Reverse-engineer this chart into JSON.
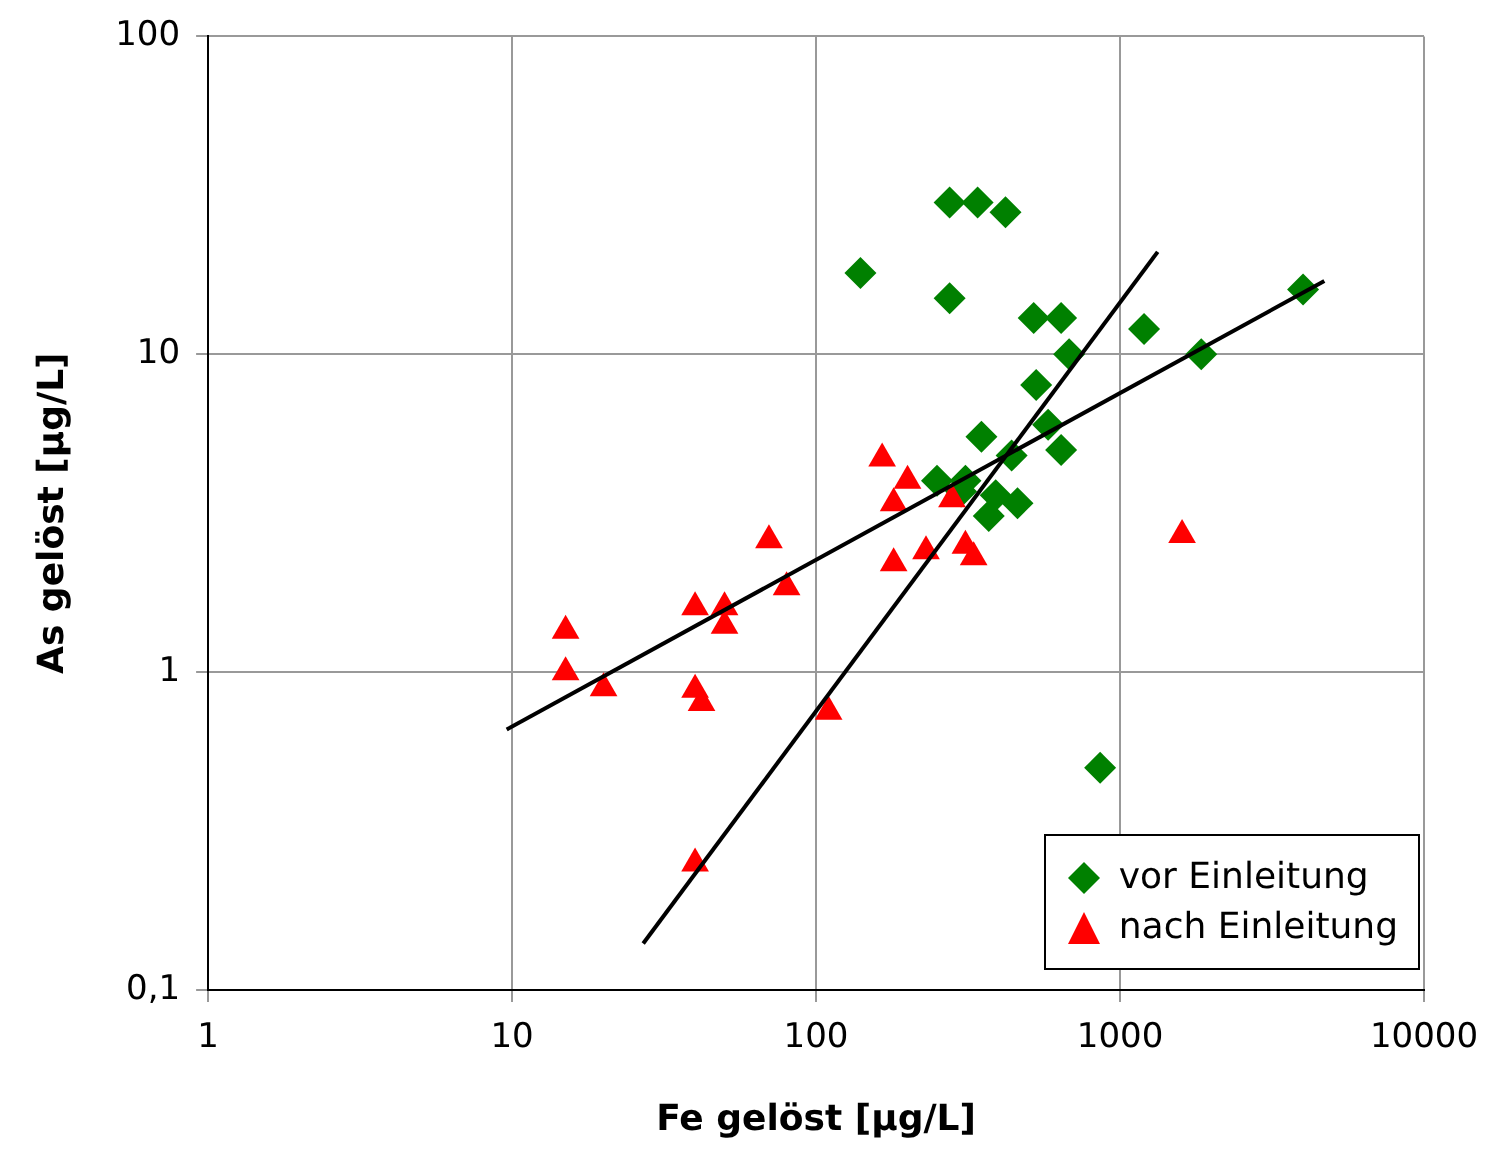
{
  "chart_data": {
    "type": "scatter",
    "xlabel": "Fe gelöst [µg/L]",
    "ylabel": "As gelöst [µg/L]",
    "log": "xy",
    "grid": true,
    "legend": "bottom right",
    "xlim": [
      1,
      10000
    ],
    "xticks": [
      1,
      10,
      100,
      1000,
      10000
    ],
    "ylim": [
      0.1,
      100
    ],
    "yticks": [
      {
        "value": 0.1,
        "label": "0,1"
      },
      1,
      10,
      100
    ],
    "series": [
      {
        "name": "vor Einleitung",
        "color": "#008000",
        "marker": "diamond",
        "x": [
          140,
          275,
          340,
          420,
          275,
          520,
          640,
          1200,
          1850,
          680,
          530,
          4000,
          580,
          640,
          350,
          250,
          310,
          440,
          390,
          460,
          370,
          300,
          860
        ],
        "values": [
          18,
          30,
          30,
          28,
          15,
          13,
          13,
          12,
          10,
          10,
          8,
          16,
          6,
          5,
          5.5,
          4,
          4,
          4.8,
          3.6,
          3.4,
          3.1,
          3.7,
          0.5
        ]
      },
      {
        "name": "nach Einleitung",
        "color": "#ff0000",
        "marker": "triangle",
        "x": [
          15,
          15,
          20,
          40,
          50,
          50,
          40,
          42,
          40,
          70,
          80,
          110,
          165,
          200,
          180,
          180,
          230,
          280,
          310,
          330,
          1600
        ],
        "values": [
          1.35,
          1,
          0.89,
          1.6,
          1.6,
          1.4,
          0.88,
          0.8,
          0.25,
          2.6,
          1.85,
          0.75,
          4.7,
          4,
          3.4,
          2.2,
          2.4,
          3.5,
          2.5,
          2.3,
          2.7
        ]
      },
      {
        "type": "line",
        "color": "#000000",
        "marker": "none",
        "x": [
          9.6,
          4700
        ],
        "values": [
          0.66,
          17
        ]
      },
      {
        "type": "line",
        "color": "#000000",
        "marker": "none",
        "x": [
          27,
          1330
        ],
        "values": [
          0.14,
          21
        ]
      }
    ]
  }
}
